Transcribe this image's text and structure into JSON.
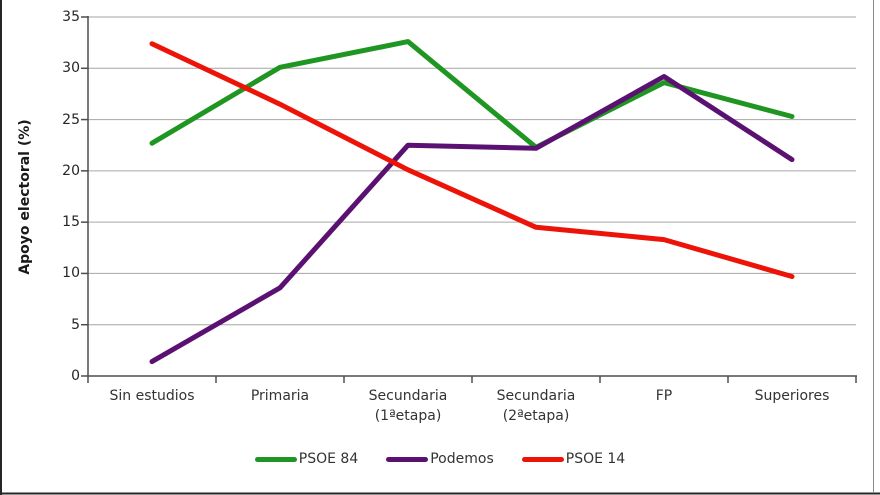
{
  "chart_data": {
    "type": "line",
    "title": "",
    "xlabel": "",
    "ylabel": "Apoyo electoral (%)",
    "ylim": [
      0,
      35
    ],
    "ytick_step": 5,
    "y_ticks": [
      0,
      5,
      10,
      15,
      20,
      25,
      30,
      35
    ],
    "grid": true,
    "legend_position": "bottom",
    "categories": [
      "Sin estudios",
      "Primaria",
      "Secundaria (1ªetapa)",
      "Secundaria (2ªetapa)",
      "FP",
      "Superiores"
    ],
    "categories_lines": [
      [
        "Sin estudios"
      ],
      [
        "Primaria"
      ],
      [
        "Secundaria",
        "(1ªetapa)"
      ],
      [
        "Secundaria",
        "(2ªetapa)"
      ],
      [
        "FP"
      ],
      [
        "Superiores"
      ]
    ],
    "series": [
      {
        "name": "PSOE 84",
        "color": "#1f9622",
        "values": [
          22.7,
          30.1,
          32.6,
          22.3,
          28.6,
          25.3
        ]
      },
      {
        "name": "Podemos",
        "color": "#5b1172",
        "values": [
          1.4,
          8.6,
          22.5,
          22.2,
          29.2,
          21.1
        ]
      },
      {
        "name": "PSOE 14",
        "color": "#ec1408",
        "values": [
          32.4,
          26.5,
          20.1,
          14.5,
          13.3,
          9.7
        ]
      }
    ]
  },
  "colors": {
    "grid": "#a6a6a6",
    "axis": "#4d4d4d",
    "frame_dark": "#262626",
    "frame_light": "#8c8c8c",
    "text": "#333333"
  }
}
